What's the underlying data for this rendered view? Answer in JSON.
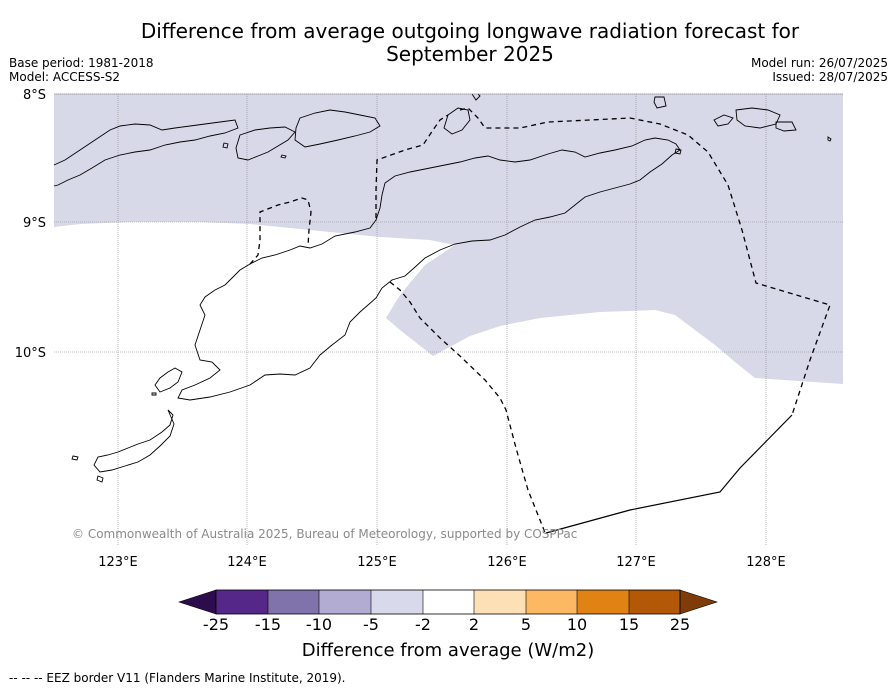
{
  "title": "Difference from average outgoing longwave radiation forecast for September 2025",
  "base_period": "Base period: 1981-2018",
  "model": "Model: ACCESS-S2",
  "model_run": "Model run: 26/07/2025",
  "issued": "Issued: 28/07/2025",
  "map": {
    "lat_labels": [
      "8°S",
      "9°S",
      "10°S"
    ],
    "lon_labels": [
      "123°E",
      "124°E",
      "125°E",
      "126°E",
      "127°E",
      "128°E"
    ],
    "copyright": "© Commonwealth of Australia 2025, Bureau of Meteorology, supported by COSPPac",
    "shading_category": "-5 to -2",
    "shading_color": "#d7d8e8",
    "land_outline_color": "#000000",
    "eez_line_style": "dashed"
  },
  "colorbar": {
    "ticks": [
      "-25",
      "-15",
      "-10",
      "-5",
      "-2",
      "2",
      "5",
      "10",
      "15",
      "25"
    ],
    "colors": [
      "#2d0c4d",
      "#542788",
      "#8073ac",
      "#b2abd2",
      "#d8daeb",
      "#ffffff",
      "#fee0b6",
      "#fdb863",
      "#e08214",
      "#b35806",
      "#7f3b08"
    ],
    "label": "Difference from average (W/m2)"
  },
  "footnote": "--  --  -- EEZ border V11 (Flanders Marine Institute, 2019)."
}
